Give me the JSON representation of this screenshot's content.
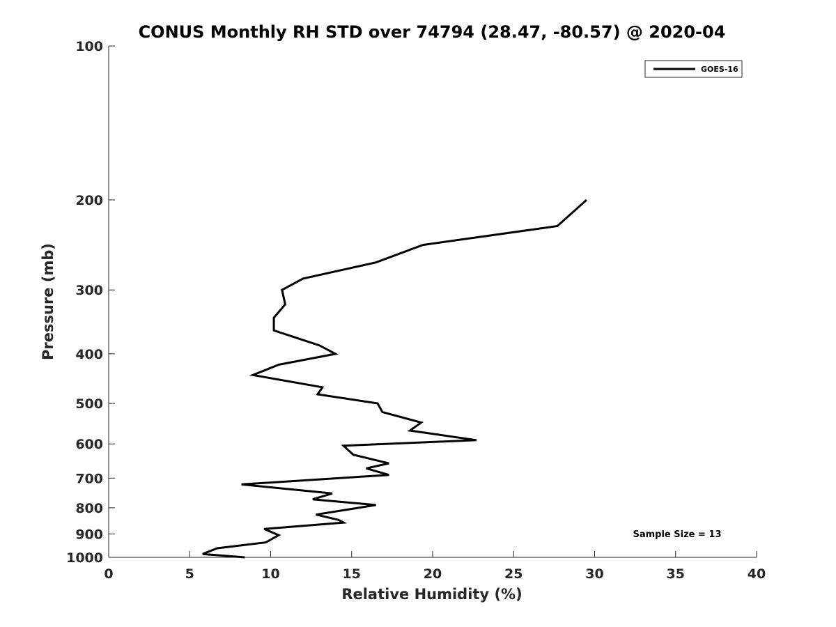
{
  "chart_data": {
    "type": "line",
    "title": "CONUS Monthly RH STD over 74794 (28.47, -80.57) @ 2020-04",
    "xlabel": "Relative Humidity (%)",
    "ylabel": "Pressure (mb)",
    "xlim": [
      0,
      40
    ],
    "ylim": [
      100,
      1000
    ],
    "yscale": "log",
    "y_reversed": true,
    "grid": false,
    "xticks": [
      "0",
      "5",
      "10",
      "15",
      "20",
      "25",
      "30",
      "35",
      "40"
    ],
    "xtick_values": [
      0,
      5,
      10,
      15,
      20,
      25,
      30,
      35,
      40
    ],
    "yticks": [
      "100",
      "200",
      "300",
      "400",
      "500",
      "600",
      "700",
      "800",
      "900",
      "1000"
    ],
    "ytick_values": [
      100,
      200,
      300,
      400,
      500,
      600,
      700,
      800,
      900,
      1000
    ],
    "legend_position": "top-right",
    "annotation": "Sample Size = 13",
    "series": [
      {
        "name": "GOES-16",
        "color": "#000000",
        "points": [
          {
            "x": 29.5,
            "y": 200
          },
          {
            "x": 27.7,
            "y": 225
          },
          {
            "x": 19.4,
            "y": 245
          },
          {
            "x": 16.5,
            "y": 265
          },
          {
            "x": 12.0,
            "y": 285
          },
          {
            "x": 10.7,
            "y": 300
          },
          {
            "x": 10.9,
            "y": 320
          },
          {
            "x": 10.2,
            "y": 340
          },
          {
            "x": 10.2,
            "y": 360
          },
          {
            "x": 13.0,
            "y": 385
          },
          {
            "x": 14.0,
            "y": 400
          },
          {
            "x": 10.5,
            "y": 420
          },
          {
            "x": 8.9,
            "y": 440
          },
          {
            "x": 13.2,
            "y": 465
          },
          {
            "x": 12.9,
            "y": 480
          },
          {
            "x": 16.6,
            "y": 500
          },
          {
            "x": 16.9,
            "y": 520
          },
          {
            "x": 19.3,
            "y": 545
          },
          {
            "x": 18.6,
            "y": 565
          },
          {
            "x": 22.7,
            "y": 590
          },
          {
            "x": 14.5,
            "y": 605
          },
          {
            "x": 15.1,
            "y": 630
          },
          {
            "x": 17.3,
            "y": 655
          },
          {
            "x": 15.9,
            "y": 670
          },
          {
            "x": 17.3,
            "y": 690
          },
          {
            "x": 8.2,
            "y": 720
          },
          {
            "x": 13.8,
            "y": 750
          },
          {
            "x": 12.6,
            "y": 770
          },
          {
            "x": 16.5,
            "y": 790
          },
          {
            "x": 12.8,
            "y": 825
          },
          {
            "x": 14.2,
            "y": 845
          },
          {
            "x": 14.5,
            "y": 855
          },
          {
            "x": 9.6,
            "y": 880
          },
          {
            "x": 10.5,
            "y": 905
          },
          {
            "x": 9.7,
            "y": 935
          },
          {
            "x": 6.7,
            "y": 960
          },
          {
            "x": 5.8,
            "y": 985
          },
          {
            "x": 8.4,
            "y": 1000
          }
        ]
      }
    ]
  }
}
